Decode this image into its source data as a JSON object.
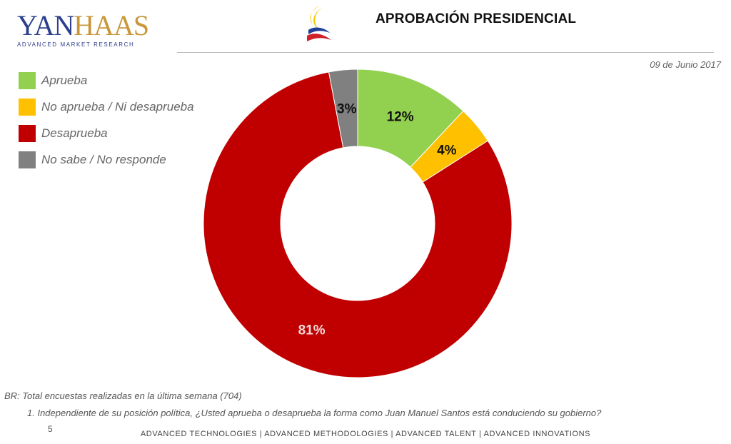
{
  "header": {
    "logo_word_a": "YAN",
    "logo_word_b": "HAAS",
    "logo_sub": "ADVANCED MARKET RESEARCH",
    "title": "APROBACIÓN PRESIDENCIAL",
    "date": "09 de Junio 2017"
  },
  "colors": {
    "aprueba": "#92d050",
    "no_aprueba_ni": "#ffc000",
    "desaprueba": "#c00000",
    "ns_nr": "#808080"
  },
  "chart_data": {
    "type": "pie",
    "variant": "donut",
    "title": "APROBACIÓN PRESIDENCIAL",
    "legend_position": "top-left",
    "categories": [
      "Aprueba",
      "No aprueba / Ni desaprueba",
      "Desaprueba",
      "No sabe /  No responde"
    ],
    "values": [
      12,
      4,
      81,
      3
    ],
    "labels": [
      "12%",
      "4%",
      "81%",
      "3%"
    ],
    "unit": "%"
  },
  "notes": {
    "base": "BR: Total encuestas realizadas en la última semana (704)",
    "question": "1. Independiente de su posición política, ¿Usted aprueba o desaprueba la forma como Juan Manuel Santos está conduciendo su gobierno?",
    "page_number": "5"
  },
  "footer": {
    "text": "ADVANCED TECHNOLOGIES  |  ADVANCED METHODOLOGIES  |  ADVANCED TALENT  |  ADVANCED INNOVATIONS"
  }
}
